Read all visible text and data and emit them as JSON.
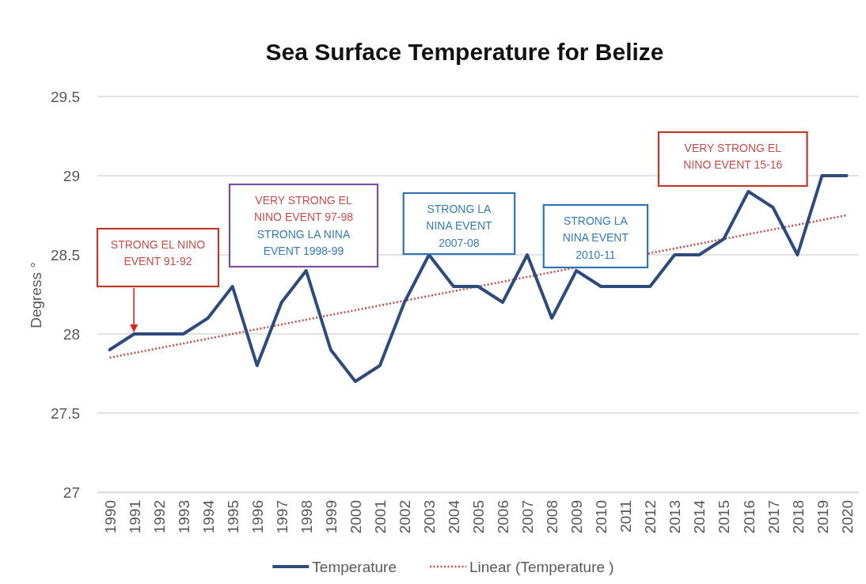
{
  "chart_data": {
    "type": "line",
    "title": "Sea Surface Temperature for Belize",
    "ylabel": "Degress °",
    "x": [
      1990,
      1991,
      1992,
      1993,
      1994,
      1995,
      1996,
      1997,
      1998,
      1999,
      2000,
      2001,
      2002,
      2003,
      2004,
      2005,
      2006,
      2007,
      2008,
      2009,
      2010,
      2011,
      2012,
      2013,
      2014,
      2015,
      2016,
      2017,
      2018,
      2019,
      2020
    ],
    "xlim": [
      1989.5,
      2020.5
    ],
    "xticks": [
      1990,
      1991,
      1992,
      1993,
      1994,
      1995,
      1996,
      1997,
      1998,
      1999,
      2000,
      2001,
      2002,
      2003,
      2004,
      2005,
      2006,
      2007,
      2008,
      2009,
      2010,
      2011,
      2012,
      2013,
      2014,
      2015,
      2016,
      2017,
      2018,
      2019,
      2020
    ],
    "ylim": [
      27,
      29.5
    ],
    "yticks": [
      27,
      27.5,
      28,
      28.5,
      29,
      29.5
    ],
    "grid": "y",
    "legend": "bottom",
    "line_style": "solid",
    "series": [
      {
        "name": "Temperature",
        "color": "#2f4b7c",
        "values": [
          27.9,
          28,
          28,
          28,
          28.1,
          28.3,
          27.8,
          28.2,
          28.4,
          27.9,
          27.7,
          27.8,
          28.2,
          28.5,
          28.3,
          28.3,
          28.2,
          28.5,
          28.1,
          28.4,
          28.3,
          28.3,
          28.3,
          28.5,
          28.5,
          28.6,
          28.9,
          28.8,
          28.5,
          29,
          29
        ]
      },
      {
        "name": "Linear (Temperature )",
        "type": "line",
        "color": "#c0504d",
        "line_style": "dotted",
        "x": [
          1990,
          2020
        ],
        "values": [
          27.85,
          28.75
        ]
      }
    ],
    "annotations": [
      "STRONG EL NINO EVENT 91-92",
      "VERY STRONG EL NINO EVENT 97-98",
      "STRONG LA NINA EVENT 1998-99",
      "STRONG LA NINA EVENT 2007-08",
      "STRONG LA NINA EVENT 2010-11",
      "VERY STRONG EL NINO EVENT 15-16"
    ]
  }
}
